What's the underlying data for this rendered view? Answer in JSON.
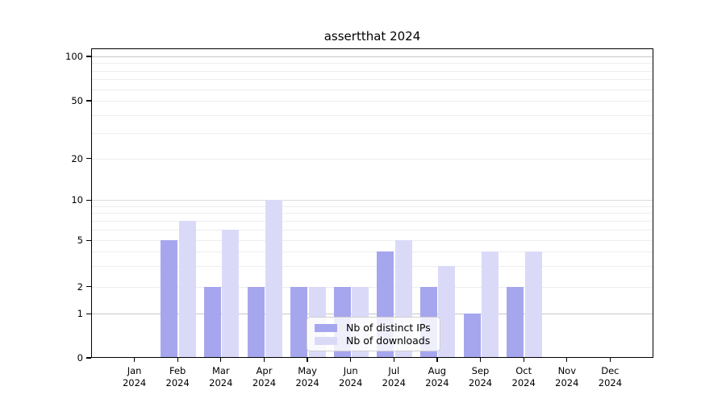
{
  "title": "assertthat 2024",
  "legend": {
    "items": [
      {
        "label": "Nb of distinct IPs",
        "color": "#a6a6ee"
      },
      {
        "label": "Nb of downloads",
        "color": "#dadaf8"
      }
    ]
  },
  "colors": {
    "bar_distinct_ips": "#a6a6ee",
    "bar_downloads": "#dadaf8",
    "grid_minor": "#ededed",
    "grid_decade": "#dcdcdc",
    "grid_strong": "#c6c6c6",
    "axis": "#000000",
    "legend_border": "#cfcfcf"
  },
  "chart_data": {
    "type": "bar",
    "title": "assertthat 2024",
    "categories": [
      "Jan",
      "Feb",
      "Mar",
      "Apr",
      "May",
      "Jun",
      "Jul",
      "Aug",
      "Sep",
      "Oct",
      "Nov",
      "Dec"
    ],
    "category_year": "2024",
    "series": [
      {
        "name": "Nb of distinct IPs",
        "color": "#a6a6ee",
        "values": [
          0,
          5,
          2,
          2,
          2,
          2,
          4,
          2,
          1,
          2,
          0,
          0
        ]
      },
      {
        "name": "Nb of downloads",
        "color": "#dadaf8",
        "values": [
          0,
          7,
          6,
          10,
          2,
          2,
          5,
          3,
          4,
          4,
          0,
          0
        ]
      }
    ],
    "xlabel": "",
    "ylabel": "",
    "yticks": [
      0,
      1,
      2,
      5,
      10,
      20,
      50,
      100
    ],
    "yscale": "log-like with 0 pinned at baseline",
    "ylim": [
      0,
      114
    ],
    "grid": true,
    "gridline_values": [
      1,
      2,
      3,
      4,
      5,
      6,
      7,
      8,
      9,
      10,
      20,
      30,
      40,
      50,
      60,
      70,
      80,
      90,
      100
    ],
    "legend_position": "lower center"
  }
}
